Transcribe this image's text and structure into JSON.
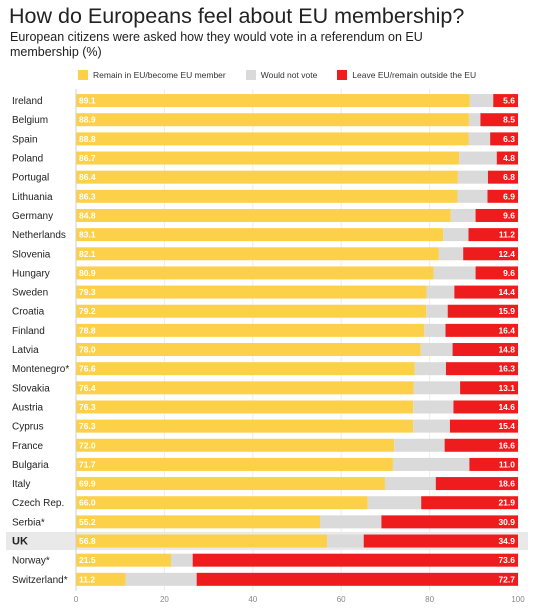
{
  "chart_data": {
    "type": "bar",
    "orientation": "horizontal",
    "stacked": true,
    "title": "How do Europeans feel about EU membership?",
    "subtitle": "European citizens were asked how they would vote in a referendum on EU membership (%)",
    "categories": [
      "Ireland",
      "Belgium",
      "Spain",
      "Poland",
      "Portugal",
      "Lithuania",
      "Germany",
      "Netherlands",
      "Slovenia",
      "Hungary",
      "Sweden",
      "Croatia",
      "Finland",
      "Latvia",
      "Montenegro*",
      "Slovakia",
      "Austria",
      "Cyprus",
      "France",
      "Bulgaria",
      "Italy",
      "Czech Rep.",
      "Serbia*",
      "UK",
      "Norway*",
      "Switzerland*"
    ],
    "highlight": "UK",
    "series": [
      {
        "name": "Remain in EU/become EU member",
        "color": "#fdd04a",
        "values": [
          89.1,
          88.9,
          88.8,
          86.7,
          86.4,
          86.3,
          84.8,
          83.1,
          82.1,
          80.9,
          79.3,
          79.2,
          78.8,
          78.0,
          76.6,
          76.4,
          76.3,
          76.3,
          72.0,
          71.7,
          69.9,
          66.0,
          55.2,
          56.8,
          21.5,
          11.2
        ]
      },
      {
        "name": "Would not vote",
        "color": "#dadada",
        "values": [
          5.3,
          2.6,
          4.9,
          8.5,
          6.8,
          6.8,
          5.6,
          5.7,
          5.5,
          9.5,
          6.3,
          4.9,
          4.8,
          7.2,
          7.1,
          10.5,
          9.1,
          8.3,
          11.4,
          17.3,
          11.5,
          12.1,
          13.9,
          8.3,
          4.9,
          16.1
        ]
      },
      {
        "name": "Leave EU/remain outside the EU",
        "color": "#ee1c1c",
        "values": [
          5.6,
          8.5,
          6.3,
          4.8,
          6.8,
          6.9,
          9.6,
          11.2,
          12.4,
          9.6,
          14.4,
          15.9,
          16.4,
          14.8,
          16.3,
          13.1,
          14.6,
          15.4,
          16.6,
          11.0,
          18.6,
          21.9,
          30.9,
          34.9,
          73.6,
          72.7
        ]
      }
    ],
    "xlim": [
      0,
      100
    ],
    "xticks": [
      0,
      20,
      40,
      60,
      80,
      100
    ],
    "legend_position": "top",
    "data_labels": "Remain and Leave values shown inside bars"
  }
}
